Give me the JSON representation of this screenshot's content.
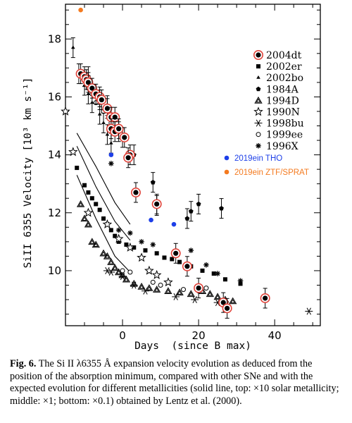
{
  "caption": {
    "label": "Fig. 6.",
    "text": " The Si II λ6355 Å expansion velocity evolution as deduced from the position of the absorption minimum, compared with other SNe and with the expected evolution for different metallicities (solid line, top: ×10 solar metallicity; middle: ×1; bottom: ×0.1) obtained by Lentz et al. (2000)."
  },
  "chart_data": {
    "type": "scatter",
    "xlabel": "Days  (since B max)",
    "ylabel": "SiII 6355 Velocity  [10³ km s⁻¹]",
    "xlim": [
      -15,
      52
    ],
    "ylim": [
      8.1,
      19.2
    ],
    "xticks": [
      0,
      20,
      40
    ],
    "yticks": [
      10,
      12,
      14,
      16,
      18
    ],
    "legend_position": "top-right",
    "colors": {
      "ring": "#e0433a",
      "blue": "#1d3fe8",
      "orange": "#f47a1f"
    },
    "series": [
      {
        "name": "2004dt",
        "marker": "filled-circle-ringed",
        "points": [
          [
            -11,
            16.8
          ],
          [
            -10,
            16.7
          ],
          [
            -9.5,
            16.6
          ],
          [
            -9,
            16.5
          ],
          [
            -8,
            16.3
          ],
          [
            -7,
            16.1
          ],
          [
            -6,
            16.0
          ],
          [
            -5.5,
            15.9
          ],
          [
            -4,
            15.6
          ],
          [
            -3,
            15.3
          ],
          [
            -2,
            15.3
          ],
          [
            -3,
            14.9
          ],
          [
            -2,
            14.8
          ],
          [
            -1,
            14.9
          ],
          [
            0.5,
            14.6
          ],
          [
            2,
            14.0
          ],
          [
            1.5,
            13.9
          ],
          [
            3.5,
            12.7
          ],
          [
            9,
            12.3
          ],
          [
            14,
            10.6
          ],
          [
            17,
            10.15
          ],
          [
            20,
            9.4
          ],
          [
            26.5,
            8.9
          ],
          [
            27.5,
            8.7
          ],
          [
            37.5,
            9.05
          ]
        ]
      },
      {
        "name": "2002er",
        "marker": "filled-square",
        "points": [
          [
            -12,
            13.55
          ],
          [
            -10,
            12.95
          ],
          [
            -9,
            12.7
          ],
          [
            -8,
            12.5
          ],
          [
            -7,
            12.3
          ],
          [
            -6,
            12.1
          ],
          [
            -5,
            11.8
          ],
          [
            -4,
            11.6
          ],
          [
            -3,
            11.4
          ],
          [
            -2,
            11.2
          ],
          [
            -1,
            11.0
          ],
          [
            1,
            10.9
          ],
          [
            3,
            10.8
          ],
          [
            6,
            10.7
          ],
          [
            9,
            10.6
          ],
          [
            11,
            10.45
          ],
          [
            13,
            10.4
          ],
          [
            15,
            10.3
          ],
          [
            18,
            10.15
          ],
          [
            21,
            10.0
          ],
          [
            24,
            9.9
          ],
          [
            27,
            9.7
          ],
          [
            31,
            9.55
          ]
        ]
      },
      {
        "name": "2002bo",
        "marker": "filled-triangle",
        "points": [
          [
            -13,
            17.7
          ],
          [
            -11.5,
            16.8
          ],
          [
            -10,
            16.4
          ],
          [
            -9,
            16.1
          ],
          [
            -8,
            15.8
          ],
          [
            -6,
            15.4
          ],
          [
            -5,
            15.1
          ],
          [
            -4,
            14.7
          ],
          [
            -3,
            14.4
          ]
        ]
      },
      {
        "name": "1984A",
        "marker": "filled-pentagon",
        "points": [
          [
            -9,
            16.7
          ],
          [
            -6,
            15.9
          ],
          [
            -4,
            15.7
          ],
          [
            -1,
            14.8
          ],
          [
            0,
            14.6
          ],
          [
            3,
            14.0
          ],
          [
            8,
            13.05
          ],
          [
            9,
            12.25
          ],
          [
            17,
            11.8
          ],
          [
            18,
            12.05
          ],
          [
            20,
            12.3
          ],
          [
            26,
            12.15
          ]
        ]
      },
      {
        "name": "1994D",
        "marker": "open-triangle",
        "points": [
          [
            -11,
            12.3
          ],
          [
            -10,
            11.8
          ],
          [
            -9,
            11.6
          ],
          [
            -8,
            11.0
          ],
          [
            -7,
            10.9
          ],
          [
            -5,
            10.6
          ],
          [
            -4,
            10.5
          ],
          [
            -3,
            10.3
          ],
          [
            -2,
            10.1
          ],
          [
            -1,
            9.95
          ],
          [
            0,
            9.85
          ],
          [
            1,
            9.7
          ],
          [
            3,
            9.55
          ],
          [
            5,
            9.45
          ],
          [
            7,
            9.4
          ],
          [
            9,
            9.35
          ],
          [
            12,
            9.3
          ],
          [
            15,
            9.25
          ],
          [
            18,
            9.2
          ],
          [
            21,
            9.3
          ],
          [
            23,
            9.2
          ],
          [
            25,
            9.1
          ],
          [
            27,
            9.0
          ],
          [
            29,
            8.95
          ]
        ]
      },
      {
        "name": "1990N",
        "marker": "open-star",
        "points": [
          [
            -15,
            15.5
          ],
          [
            -13,
            14.1
          ],
          [
            -9,
            12.0
          ],
          [
            -4,
            11.6
          ],
          [
            -1,
            11.1
          ],
          [
            2,
            10.8
          ],
          [
            5,
            10.45
          ],
          [
            7,
            10.0
          ],
          [
            9,
            9.85
          ],
          [
            12,
            9.6
          ]
        ]
      },
      {
        "name": "1998bu",
        "marker": "asterisk-6",
        "points": [
          [
            -4,
            10.0
          ],
          [
            -3,
            9.95
          ],
          [
            0,
            9.8
          ],
          [
            3,
            9.5
          ],
          [
            6,
            9.3
          ],
          [
            14,
            9.1
          ],
          [
            19,
            9.0
          ],
          [
            25,
            8.9
          ],
          [
            49,
            8.6
          ]
        ]
      },
      {
        "name": "1999ee",
        "marker": "open-circle",
        "points": [
          [
            -9,
            16.3
          ],
          [
            -8,
            16.1
          ],
          [
            -7,
            15.8
          ],
          [
            -5,
            15.5
          ],
          [
            -3,
            15.1
          ],
          [
            0,
            10.0
          ],
          [
            2,
            9.95
          ],
          [
            8,
            9.6
          ],
          [
            10,
            9.5
          ],
          [
            16,
            9.35
          ],
          [
            20,
            9.3
          ],
          [
            22,
            9.4
          ]
        ]
      },
      {
        "name": "1996X",
        "marker": "asterisk-8",
        "points": [
          [
            -3,
            13.7
          ],
          [
            -1,
            11.4
          ],
          [
            2,
            11.3
          ],
          [
            5,
            11.0
          ],
          [
            8,
            10.9
          ],
          [
            18,
            10.7
          ],
          [
            22,
            10.2
          ],
          [
            25,
            9.9
          ],
          [
            31,
            9.65
          ]
        ]
      },
      {
        "name": "2019ein THO",
        "marker": "blue-dot",
        "points": [
          [
            -3,
            14.0
          ],
          [
            7.5,
            11.75
          ],
          [
            13.5,
            11.6
          ]
        ]
      },
      {
        "name": "2019ein  ZTF/SPRAT",
        "marker": "orange-dot",
        "points": [
          [
            -11,
            19.0
          ]
        ]
      }
    ],
    "model_lines": [
      {
        "points": [
          [
            -12,
            14.75
          ],
          [
            -7,
            13.6
          ],
          [
            -2,
            12.35
          ],
          [
            2,
            11.6
          ]
        ]
      },
      {
        "points": [
          [
            -12,
            14.3
          ],
          [
            -7,
            12.9
          ],
          [
            -2,
            11.7
          ],
          [
            2,
            11.05
          ]
        ]
      },
      {
        "points": [
          [
            -12,
            13.3
          ],
          [
            -7,
            11.8
          ],
          [
            -2,
            10.5
          ],
          [
            2,
            9.95
          ]
        ]
      }
    ]
  }
}
